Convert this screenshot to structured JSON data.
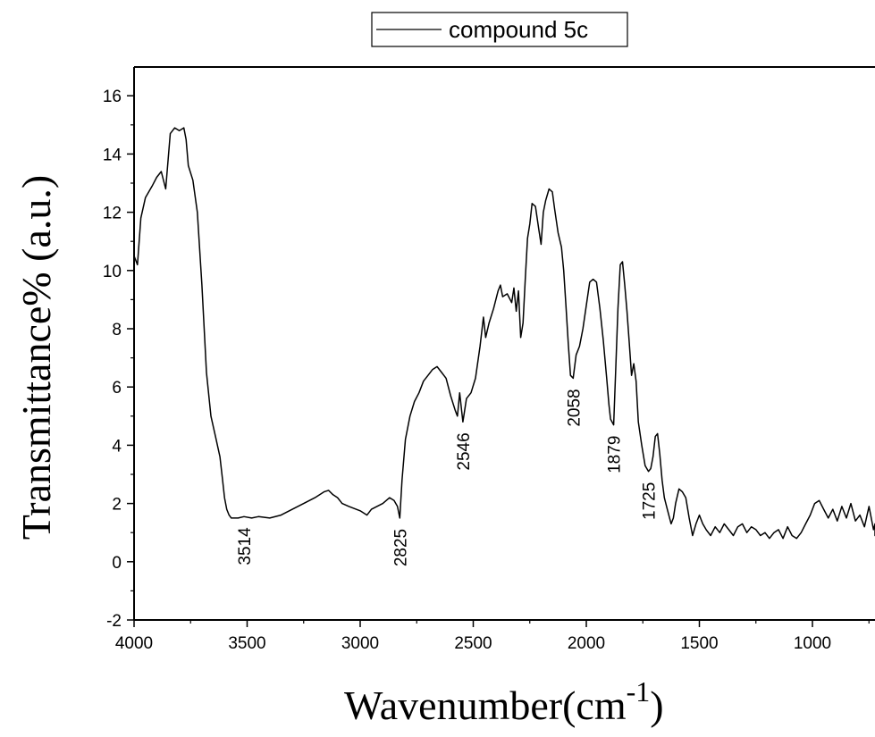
{
  "chart_data": {
    "type": "line",
    "title": "",
    "xlabel": "Wavenumber(cm",
    "xlabel_sup": "-1",
    "xlabel_close": ")",
    "ylabel": "Transmittance% (a.u.)",
    "xlim": [
      4000,
      680
    ],
    "ylim": [
      -2,
      17
    ],
    "x_ticks": [
      4000,
      3500,
      3000,
      2500,
      2000,
      1500,
      1000
    ],
    "y_ticks": [
      -2,
      0,
      2,
      4,
      6,
      8,
      10,
      12,
      14,
      16
    ],
    "x_tick_labels": [
      "4000",
      "3500",
      "3000",
      "2500",
      "2000",
      "1500",
      "1000"
    ],
    "y_tick_labels": [
      "-2",
      "0",
      "2",
      "4",
      "6",
      "8",
      "10",
      "12",
      "14",
      "16"
    ],
    "grid": false,
    "legend_position": "top-center",
    "line_color": "#000000",
    "series": [
      {
        "name": "compound 5c",
        "x": [
          4000,
          3985,
          3970,
          3950,
          3920,
          3900,
          3880,
          3860,
          3840,
          3820,
          3800,
          3780,
          3770,
          3760,
          3740,
          3720,
          3700,
          3680,
          3660,
          3640,
          3620,
          3610,
          3600,
          3590,
          3580,
          3570,
          3560,
          3540,
          3514,
          3480,
          3450,
          3400,
          3350,
          3300,
          3250,
          3200,
          3160,
          3140,
          3120,
          3100,
          3080,
          3050,
          3000,
          2970,
          2950,
          2900,
          2870,
          2850,
          2835,
          2825,
          2815,
          2800,
          2780,
          2760,
          2740,
          2720,
          2700,
          2680,
          2660,
          2640,
          2620,
          2600,
          2580,
          2570,
          2560,
          2546,
          2530,
          2510,
          2490,
          2470,
          2455,
          2445,
          2430,
          2410,
          2390,
          2380,
          2370,
          2350,
          2330,
          2320,
          2310,
          2300,
          2290,
          2280,
          2270,
          2260,
          2250,
          2240,
          2225,
          2210,
          2200,
          2190,
          2180,
          2165,
          2150,
          2140,
          2125,
          2110,
          2100,
          2090,
          2080,
          2070,
          2058,
          2045,
          2030,
          2015,
          2000,
          1985,
          1970,
          1955,
          1940,
          1925,
          1910,
          1900,
          1893,
          1879,
          1870,
          1860,
          1850,
          1840,
          1830,
          1820,
          1810,
          1800,
          1790,
          1780,
          1770,
          1755,
          1740,
          1725,
          1715,
          1705,
          1695,
          1685,
          1675,
          1665,
          1655,
          1645,
          1635,
          1625,
          1615,
          1605,
          1590,
          1575,
          1560,
          1545,
          1530,
          1515,
          1500,
          1485,
          1470,
          1450,
          1430,
          1410,
          1390,
          1370,
          1350,
          1330,
          1310,
          1290,
          1270,
          1250,
          1230,
          1210,
          1190,
          1170,
          1150,
          1130,
          1110,
          1090,
          1070,
          1050,
          1030,
          1010,
          990,
          970,
          950,
          930,
          910,
          890,
          870,
          850,
          830,
          810,
          790,
          770,
          750,
          730,
          710,
          690,
          680
        ],
        "y": [
          10.5,
          10.2,
          11.8,
          12.5,
          12.9,
          13.2,
          13.4,
          12.8,
          14.7,
          14.9,
          14.8,
          14.9,
          14.5,
          13.6,
          13.1,
          12.0,
          9.5,
          6.5,
          5.0,
          4.3,
          3.6,
          2.9,
          2.2,
          1.8,
          1.6,
          1.5,
          1.5,
          1.5,
          1.55,
          1.5,
          1.55,
          1.5,
          1.6,
          1.8,
          2.0,
          2.2,
          2.4,
          2.45,
          2.3,
          2.2,
          2.0,
          1.9,
          1.75,
          1.6,
          1.8,
          2.0,
          2.2,
          2.1,
          1.9,
          1.5,
          2.8,
          4.2,
          5.0,
          5.5,
          5.8,
          6.2,
          6.4,
          6.6,
          6.7,
          6.5,
          6.3,
          5.7,
          5.2,
          5.0,
          5.8,
          4.8,
          5.6,
          5.8,
          6.3,
          7.4,
          8.4,
          7.7,
          8.2,
          8.7,
          9.3,
          9.5,
          9.1,
          9.2,
          8.9,
          9.4,
          8.6,
          9.3,
          7.7,
          8.2,
          9.7,
          11.1,
          11.6,
          12.3,
          12.2,
          11.4,
          10.9,
          12.0,
          12.4,
          12.8,
          12.7,
          12.1,
          11.3,
          10.8,
          10.0,
          8.8,
          7.5,
          6.4,
          6.3,
          7.1,
          7.4,
          8.0,
          8.8,
          9.6,
          9.7,
          9.6,
          8.7,
          7.6,
          6.3,
          5.4,
          4.9,
          4.7,
          6.6,
          8.7,
          10.2,
          10.3,
          9.5,
          8.6,
          7.5,
          6.4,
          6.8,
          6.2,
          4.8,
          4.0,
          3.3,
          3.1,
          3.2,
          3.6,
          4.3,
          4.4,
          3.7,
          2.8,
          2.2,
          1.9,
          1.6,
          1.3,
          1.5,
          2.0,
          2.5,
          2.4,
          2.2,
          1.5,
          0.9,
          1.3,
          1.6,
          1.3,
          1.1,
          0.9,
          1.2,
          1.0,
          1.3,
          1.1,
          0.9,
          1.2,
          1.3,
          1.0,
          1.2,
          1.1,
          0.9,
          1.0,
          0.8,
          1.0,
          1.1,
          0.8,
          1.2,
          0.9,
          0.8,
          1.0,
          1.3,
          1.6,
          2.0,
          2.1,
          1.8,
          1.5,
          1.8,
          1.4,
          1.9,
          1.5,
          2.0,
          1.4,
          1.6,
          1.2,
          1.9,
          1.1,
          1.3,
          0.9,
          0.95
        ]
      }
    ],
    "annotations": [
      {
        "text": "3514",
        "x": 3514,
        "y": 1.55
      },
      {
        "text": "2825",
        "x": 2825,
        "y": 1.5
      },
      {
        "text": "2546",
        "x": 2546,
        "y": 4.8
      },
      {
        "text": "2058",
        "x": 2058,
        "y": 6.3
      },
      {
        "text": "1879",
        "x": 1879,
        "y": 4.7
      },
      {
        "text": "1725",
        "x": 1725,
        "y": 3.1
      }
    ]
  }
}
